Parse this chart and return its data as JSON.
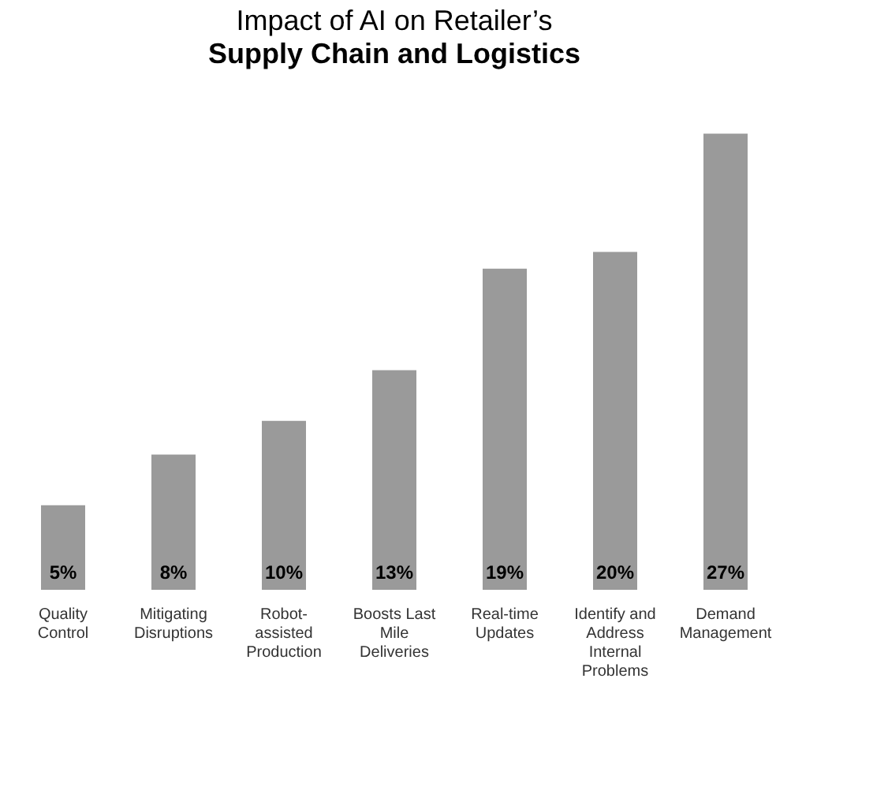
{
  "chart_data": {
    "type": "bar",
    "title": "Impact of AI on Retailer’s",
    "subtitle": "Supply Chain and Logistics",
    "categories": [
      "Quality Control",
      "Mitigating Disruptions",
      "Robot-assisted Production",
      "Boosts Last Mile Deliveries",
      "Real-time Updates",
      "Identify and Address Internal Problems",
      "Demand Management"
    ],
    "values": [
      5,
      8,
      10,
      13,
      19,
      20,
      27
    ],
    "value_labels": [
      "5%",
      "8%",
      "10%",
      "13%",
      "19%",
      "20%",
      "27%"
    ],
    "color": "#9a9a9a",
    "grid": false
  }
}
